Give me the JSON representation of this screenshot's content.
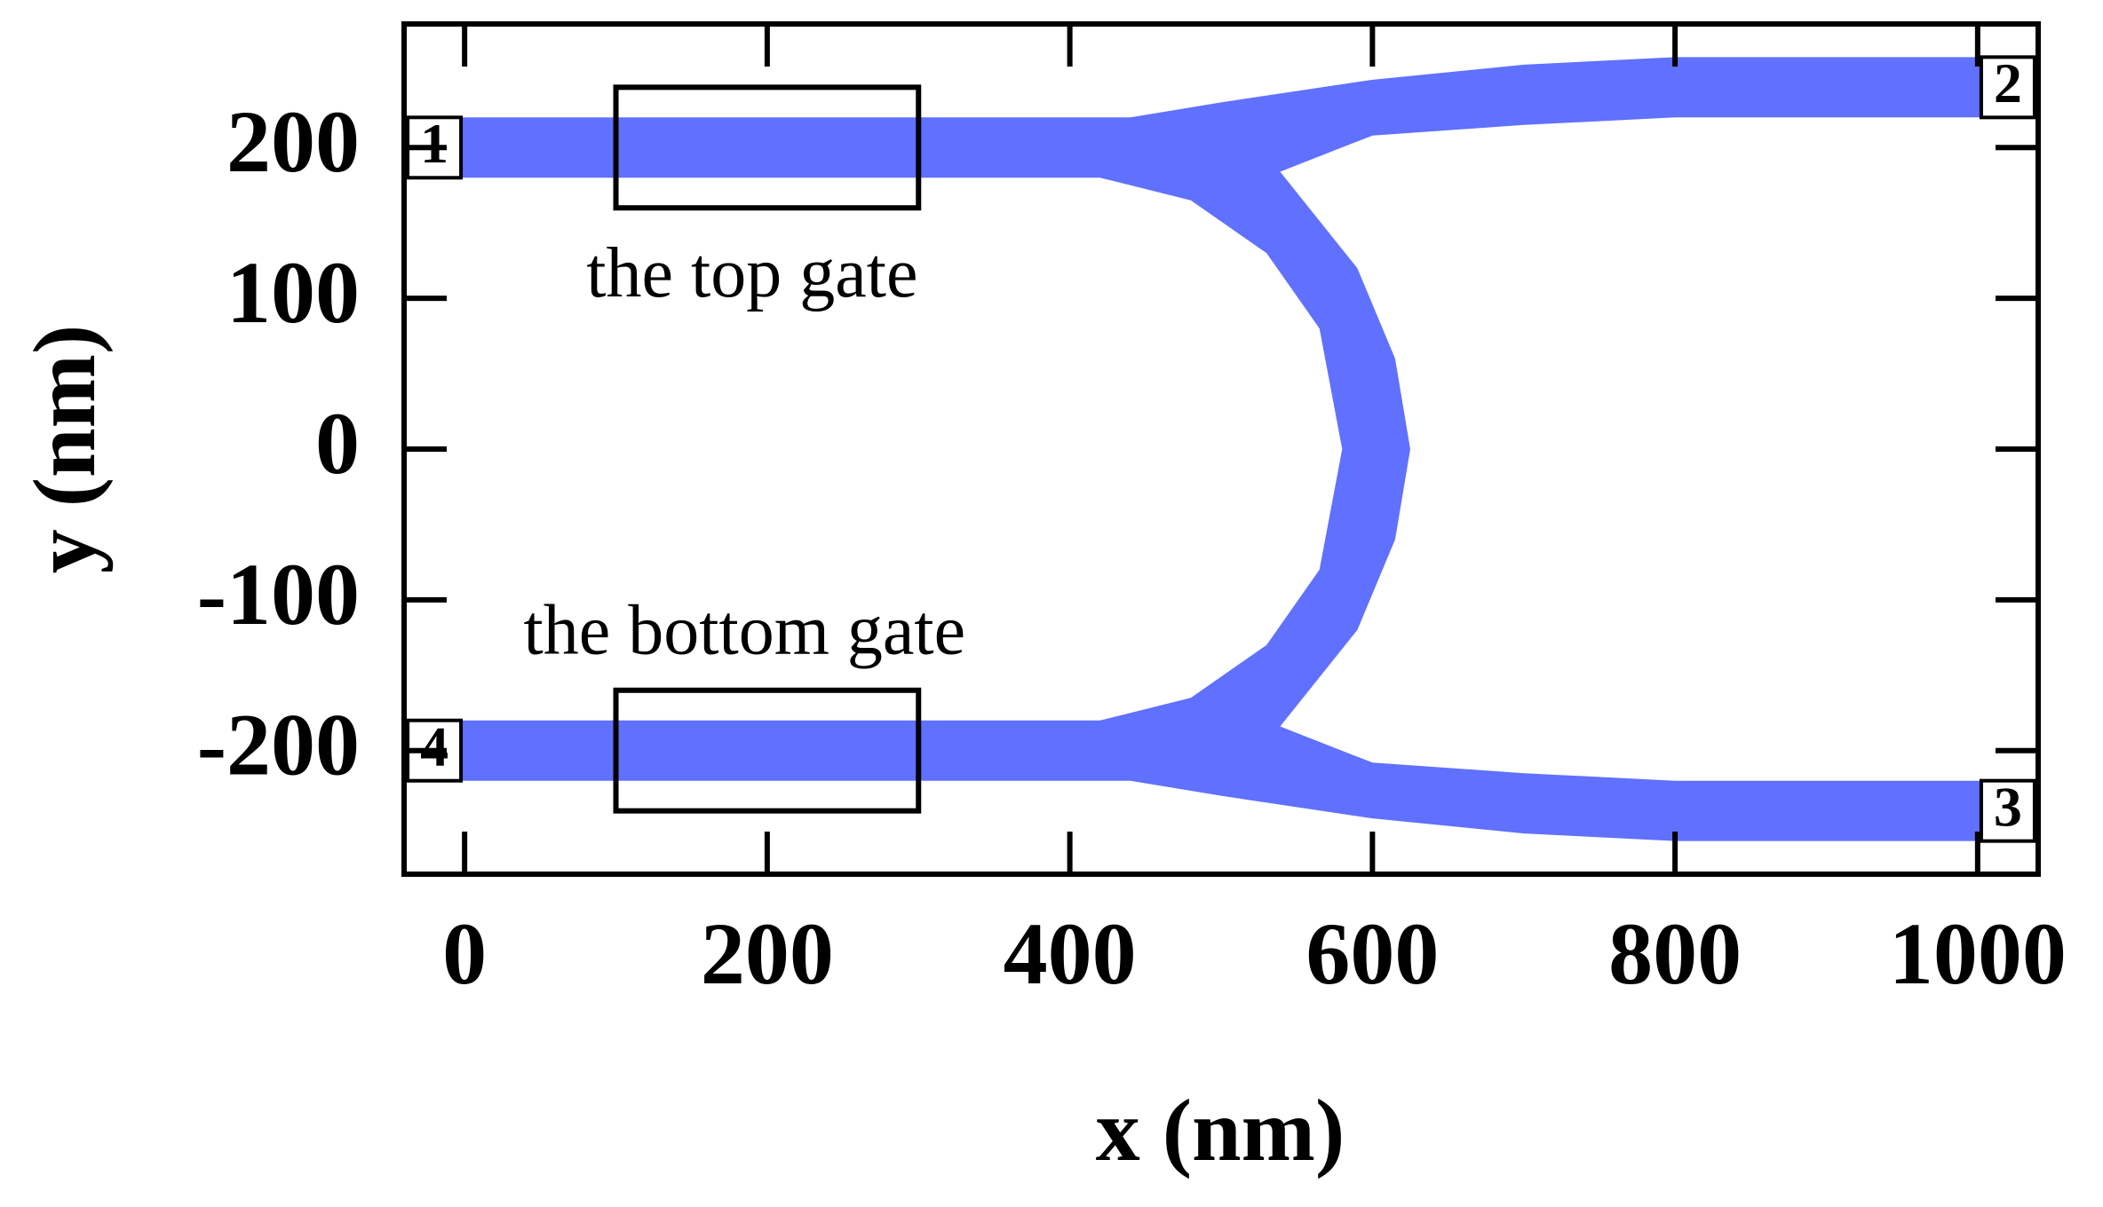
{
  "chart_data": {
    "type": "geometry",
    "xlabel": "x (nm)",
    "ylabel": "y (nm)",
    "xlim": [
      -40,
      1040
    ],
    "ylim": [
      -282,
      282
    ],
    "xticks": [
      0,
      200,
      400,
      600,
      800,
      1000
    ],
    "yticks": [
      -200,
      -100,
      0,
      100,
      200
    ],
    "series": [
      {
        "color": "#6070ff",
        "x": [
          -40,
          440,
          500,
          600,
          700,
          800,
          1040,
          1040,
          800,
          700,
          600,
          539,
          590,
          615,
          625,
          615,
          590,
          539,
          600,
          700,
          800,
          1040,
          1040,
          800,
          700,
          600,
          500,
          440,
          -40,
          -40,
          420,
          480,
          530,
          565,
          580,
          565,
          530,
          480,
          420,
          -40
        ],
        "y": [
          220,
          220,
          230,
          245,
          255,
          260,
          260,
          220,
          220,
          215,
          208,
          184,
          120,
          60,
          0,
          -60,
          -120,
          -184,
          -208,
          -215,
          -220,
          -220,
          -260,
          -260,
          -255,
          -245,
          -230,
          -220,
          -220,
          -180,
          -180,
          -165,
          -130,
          -80,
          0,
          80,
          130,
          165,
          180,
          180
        ]
      }
    ],
    "gates": [
      {
        "label": "the top gate",
        "x": [
          100,
          300
        ],
        "y": [
          160,
          240
        ],
        "label_x": 190,
        "label_y": 112
      },
      {
        "label": "the bottom gate",
        "x": [
          100,
          300
        ],
        "y": [
          -240,
          -160
        ],
        "label_x": 185,
        "label_y": -125
      }
    ],
    "ports": [
      {
        "label": "1",
        "x": -20,
        "y": 200
      },
      {
        "label": "2",
        "x": 1020,
        "y": 240
      },
      {
        "label": "3",
        "x": 1020,
        "y": -240
      },
      {
        "label": "4",
        "x": -20,
        "y": -200
      }
    ]
  }
}
